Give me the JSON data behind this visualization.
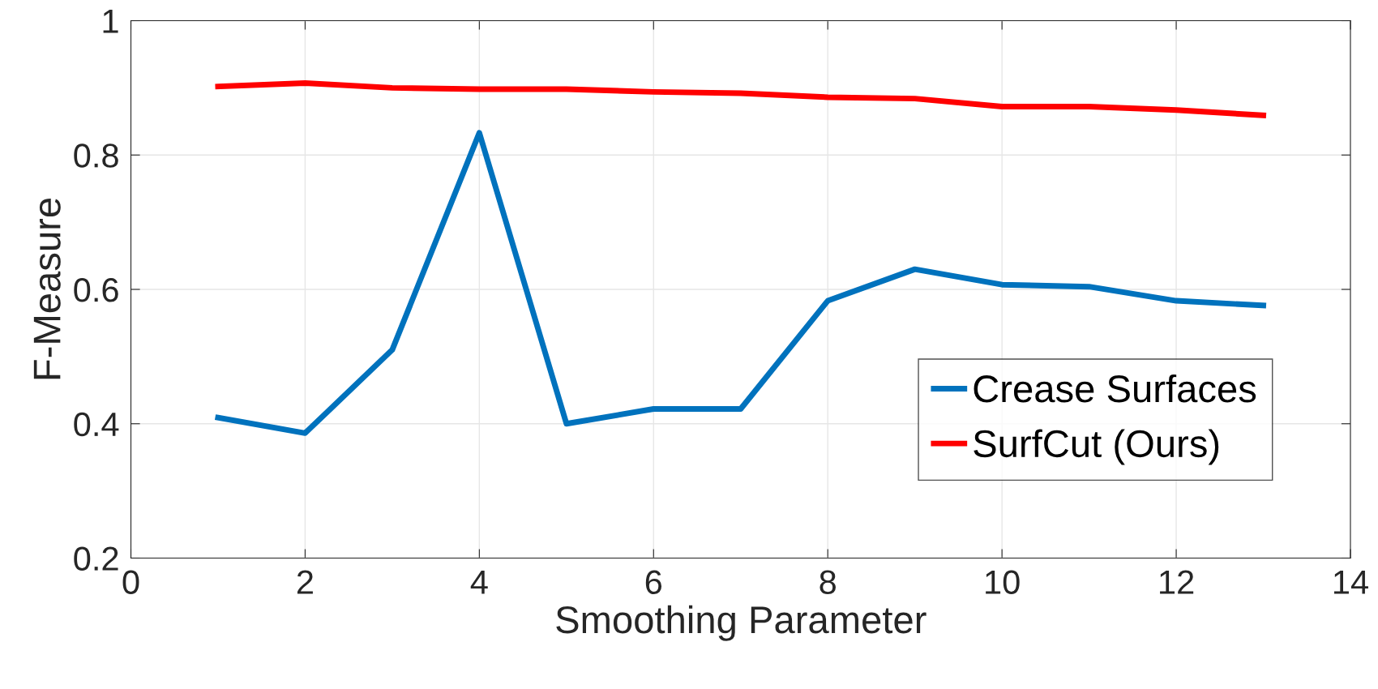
{
  "chart_data": {
    "type": "line",
    "xlabel": "Smoothing Parameter",
    "ylabel": "F-Measure",
    "x": [
      1,
      2,
      3,
      4,
      5,
      6,
      7,
      8,
      9,
      10,
      11,
      12,
      13
    ],
    "series": [
      {
        "name": "Crease Surfaces",
        "color": "#0072bd",
        "values": [
          0.409,
          0.386,
          0.51,
          0.833,
          0.4,
          0.422,
          0.422,
          0.583,
          0.63,
          0.607,
          0.604,
          0.583,
          0.576
        ]
      },
      {
        "name": "SurfCut (Ours)",
        "color": "#ff0000",
        "values": [
          0.902,
          0.907,
          0.9,
          0.898,
          0.898,
          0.894,
          0.892,
          0.886,
          0.884,
          0.872,
          0.872,
          0.867,
          0.859
        ]
      }
    ],
    "xlim": [
      0,
      14
    ],
    "xticks": [
      0,
      2,
      4,
      6,
      8,
      10,
      12,
      14
    ],
    "ylim": [
      0.2,
      1
    ],
    "yticks": [
      0.2,
      0.4,
      0.6,
      0.8,
      1
    ],
    "grid": true,
    "legend": "right",
    "marker": "none",
    "line_style": "solid"
  }
}
